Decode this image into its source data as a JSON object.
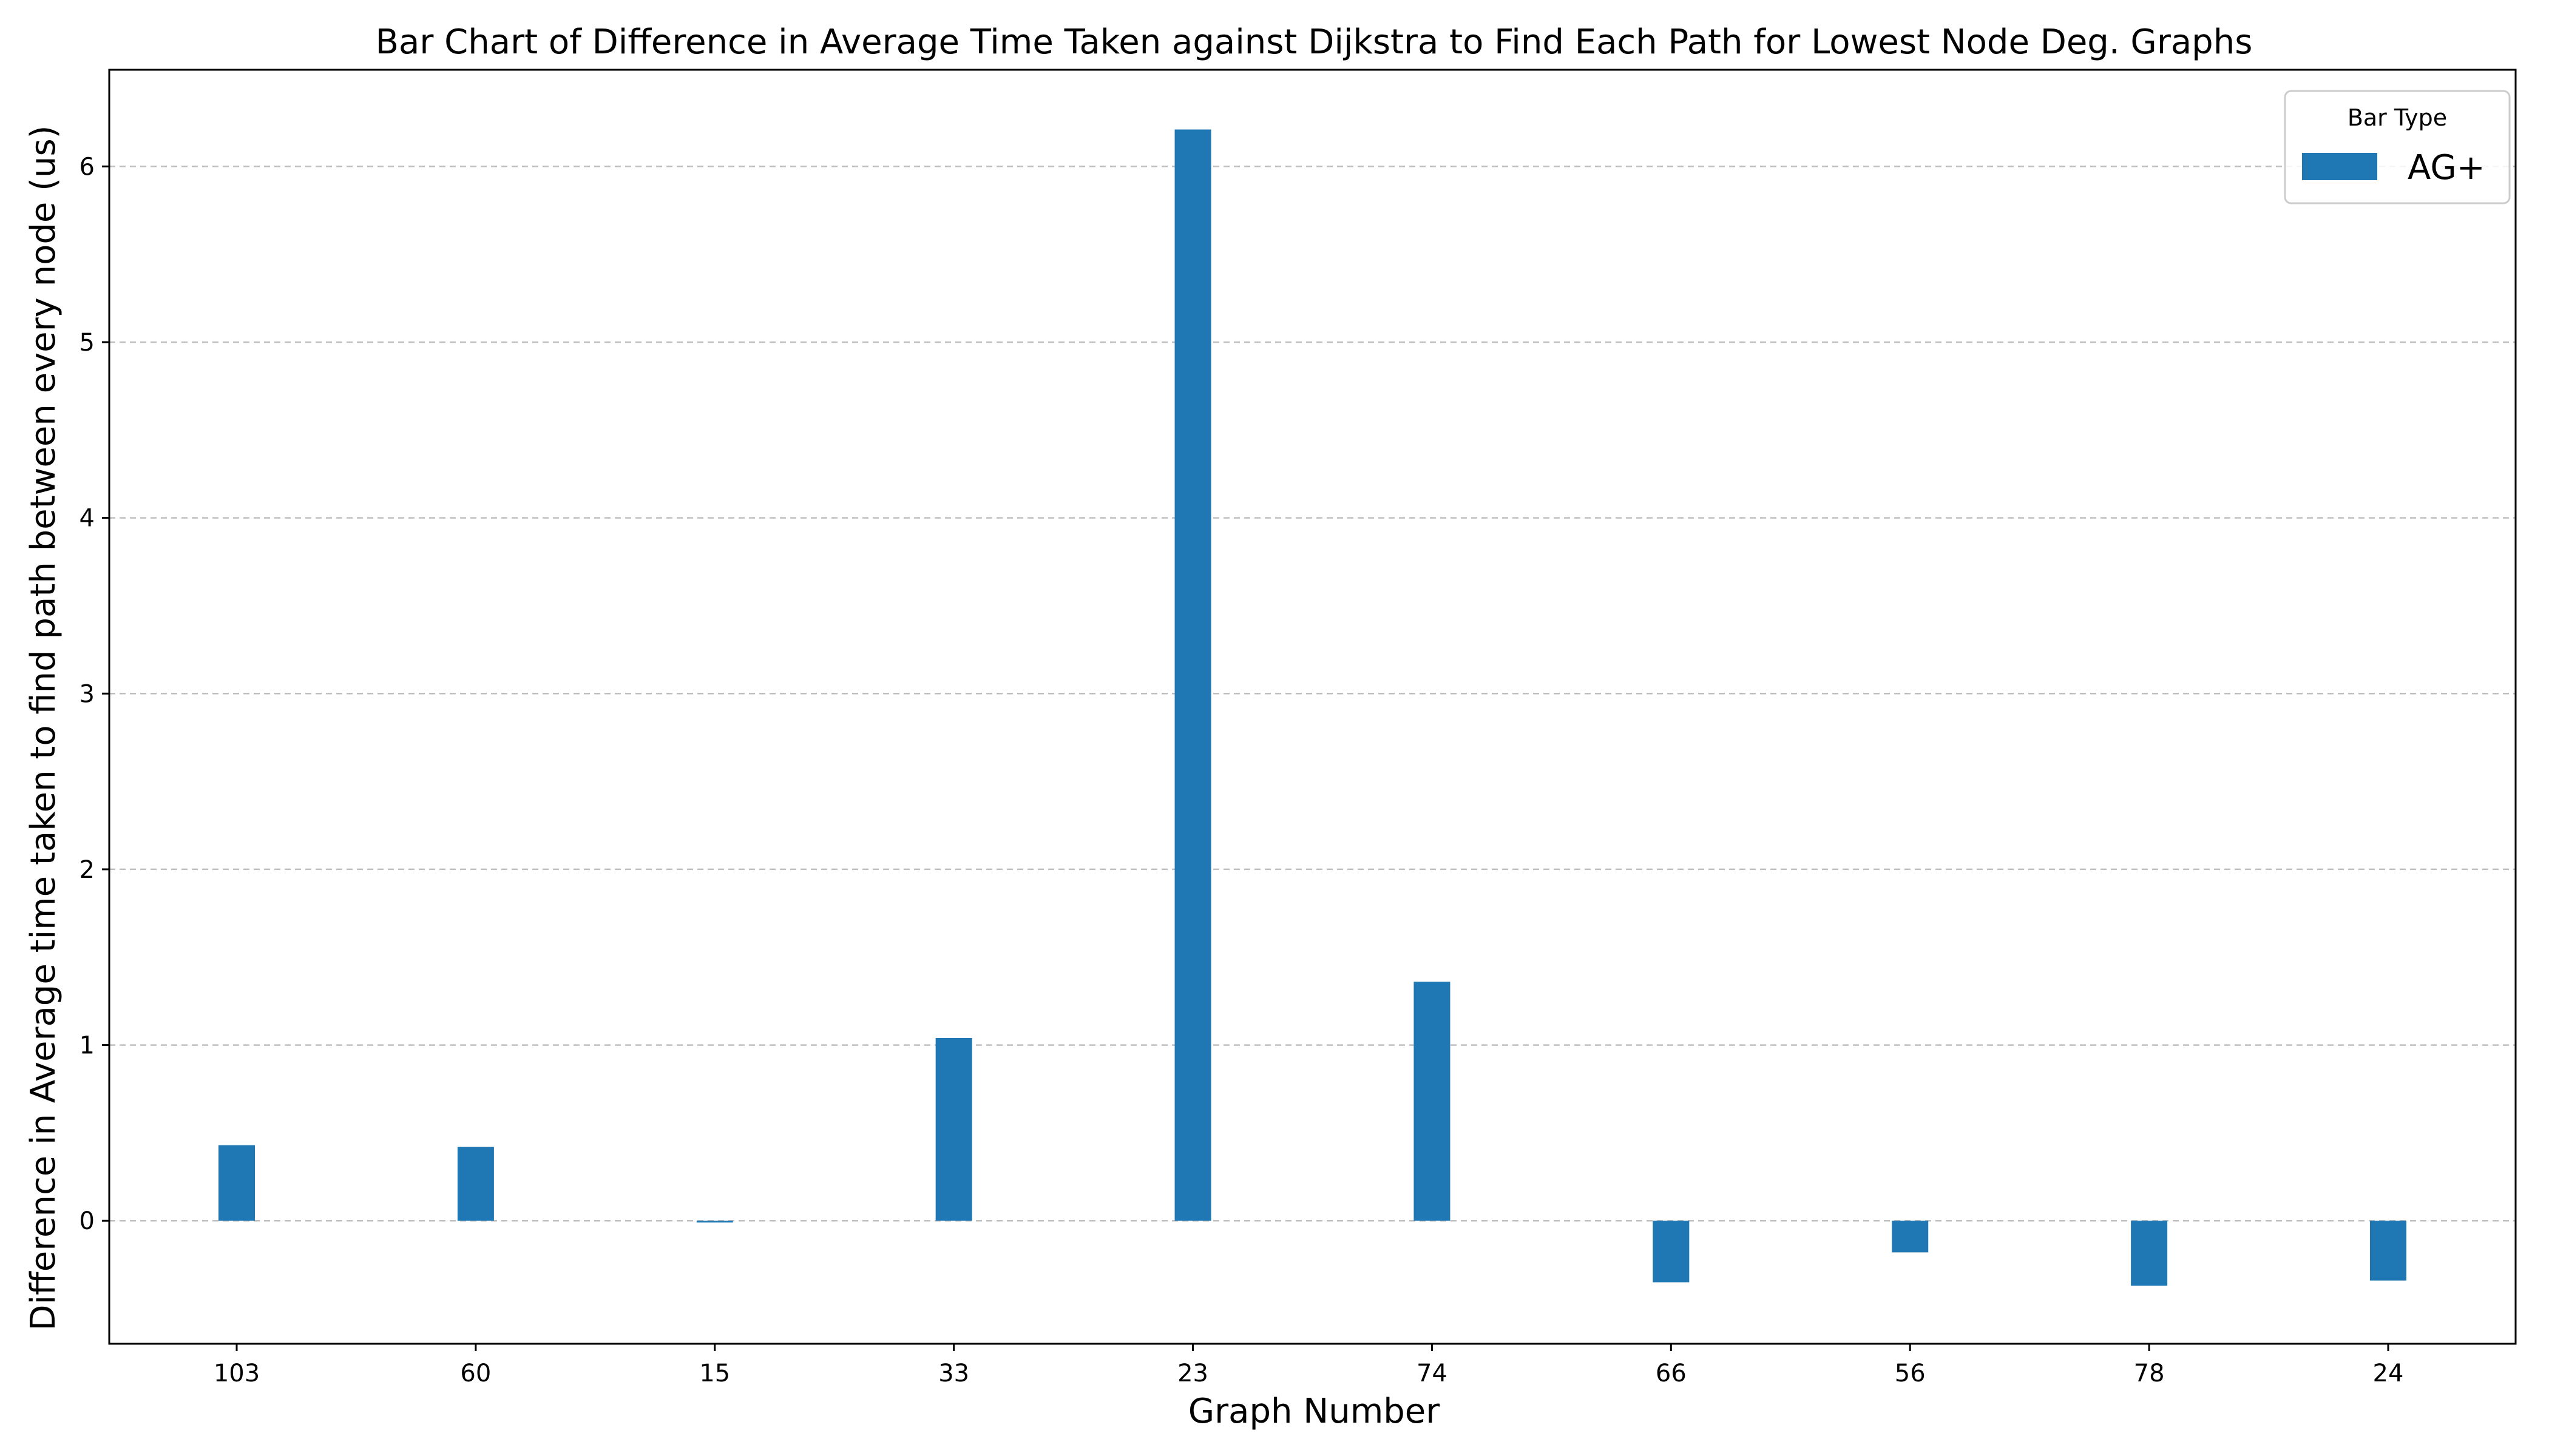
{
  "chart_data": {
    "type": "bar",
    "title": "Bar Chart of Difference in Average Time Taken against Dijkstra to Find Each Path for Lowest Node Deg. Graphs",
    "xlabel": "Graph Number",
    "ylabel": "Difference in Average time taken to find path between every node (us)",
    "categories": [
      "103",
      "60",
      "15",
      "33",
      "23",
      "74",
      "66",
      "56",
      "78",
      "24"
    ],
    "series": [
      {
        "name": "AG+",
        "color": "#1f77b4",
        "values": [
          0.43,
          0.42,
          -0.01,
          1.04,
          6.21,
          1.36,
          -0.35,
          -0.18,
          -0.37,
          -0.34
        ]
      }
    ],
    "ylim": [
      -0.7,
      6.55
    ],
    "yticks": [
      0,
      1,
      2,
      3,
      4,
      5,
      6
    ],
    "grid": "y-dashed",
    "legend": {
      "title": "Bar Type",
      "position": "top-right"
    }
  }
}
